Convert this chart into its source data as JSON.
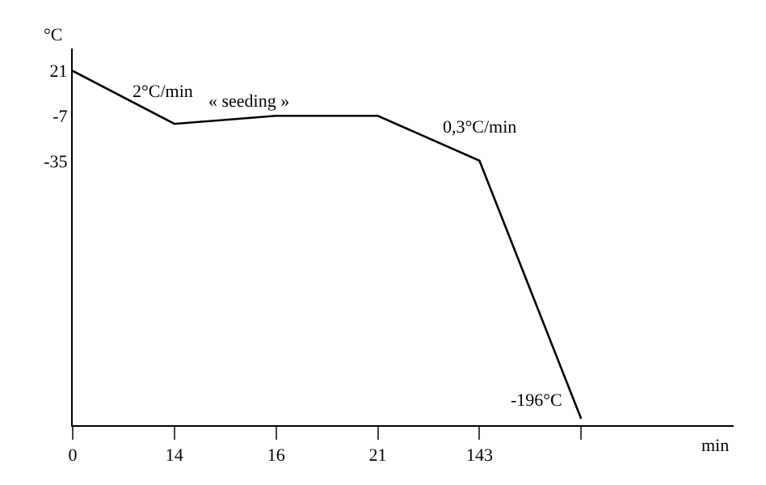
{
  "chart_data": {
    "type": "line",
    "xlabel": "min",
    "ylabel": "°C",
    "categories": [
      "0",
      "14",
      "16",
      "21",
      "143",
      null
    ],
    "series": [
      {
        "color": "#000000",
        "values": [
          21,
          -12,
          -7,
          -7,
          -35,
          -196
        ]
      }
    ],
    "ylim": [
      -200,
      35
    ],
    "yticks": [
      21,
      -7,
      -35
    ],
    "annotations": [
      "2°C/min",
      "« seeding »",
      "0,3°C/min",
      "-196°C"
    ],
    "marker": "none",
    "line_style": "solid"
  }
}
